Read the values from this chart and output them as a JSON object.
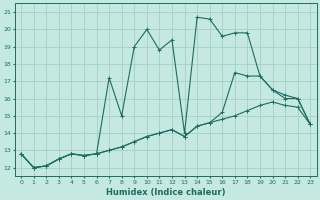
{
  "xlabel": "Humidex (Indice chaleur)",
  "bg_color": "#c5e8e0",
  "grid_color": "#9dccc4",
  "line_color": "#1a6e62",
  "xlim": [
    -0.5,
    23.5
  ],
  "ylim": [
    11.5,
    21.5
  ],
  "xticks": [
    0,
    1,
    2,
    3,
    4,
    5,
    6,
    7,
    8,
    9,
    10,
    11,
    12,
    13,
    14,
    15,
    16,
    17,
    18,
    19,
    20,
    21,
    22,
    23
  ],
  "yticks": [
    12,
    13,
    14,
    15,
    16,
    17,
    18,
    19,
    20,
    21
  ],
  "line1_y": [
    12.8,
    12.0,
    12.1,
    12.5,
    12.8,
    12.7,
    12.8,
    17.2,
    15.0,
    19.0,
    20.0,
    18.8,
    19.4,
    14.0,
    20.7,
    20.6,
    19.6,
    19.8,
    19.8,
    17.3,
    16.5,
    16.0,
    16.0,
    14.5
  ],
  "line2_y": [
    12.8,
    12.0,
    12.1,
    12.5,
    12.8,
    12.7,
    12.8,
    13.0,
    13.2,
    13.5,
    13.8,
    14.0,
    14.2,
    13.8,
    14.4,
    14.6,
    15.2,
    17.5,
    17.3,
    17.3,
    16.5,
    16.2,
    16.0,
    14.5
  ],
  "line3_y": [
    12.8,
    12.0,
    12.1,
    12.5,
    12.8,
    12.7,
    12.8,
    13.0,
    13.2,
    13.5,
    13.8,
    14.0,
    14.2,
    13.8,
    14.4,
    14.6,
    14.8,
    15.0,
    15.3,
    15.6,
    15.8,
    15.6,
    15.5,
    14.5
  ]
}
